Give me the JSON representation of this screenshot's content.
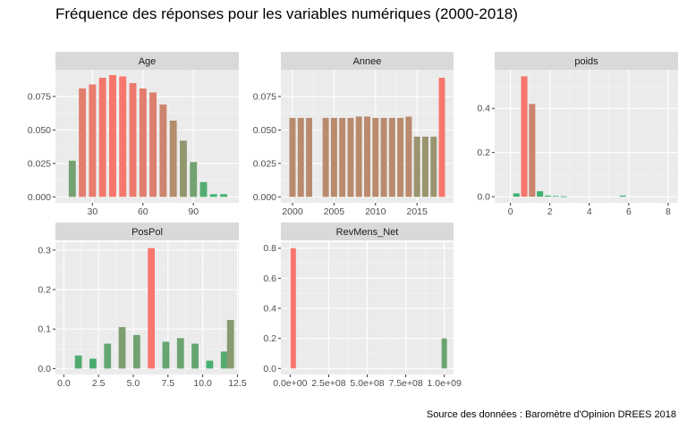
{
  "title": "Fréquence des réponses pour les variables numériques (2000-2018)",
  "caption": "Source des données : Baromètre d'Opinion DREES 2018",
  "colors": {
    "panel_bg": "#ebebeb",
    "strip_bg": "#d9d9d9",
    "grid_major": "#ffffff",
    "low": "#3cb371",
    "high": "#f8766d"
  },
  "chart_data": [
    {
      "type": "bar",
      "title": "Age",
      "xlim": [
        8,
        117
      ],
      "ylim": [
        -0.0045,
        0.095
      ],
      "xticks": [
        30,
        60,
        90
      ],
      "xtick_labels": [
        "30",
        "60",
        "90"
      ],
      "yticks": [
        0,
        0.025,
        0.05,
        0.075
      ],
      "ytick_labels": [
        "0.000",
        "0.025",
        "0.050",
        "0.075"
      ],
      "bar_width": 4.2,
      "x": [
        18,
        24,
        30,
        36,
        42,
        48,
        54,
        60,
        66,
        72,
        78,
        84,
        90,
        96,
        102,
        108
      ],
      "values": [
        0.027,
        0.081,
        0.084,
        0.089,
        0.091,
        0.09,
        0.085,
        0.081,
        0.078,
        0.069,
        0.057,
        0.042,
        0.026,
        0.011,
        0.002,
        0.002
      ]
    },
    {
      "type": "bar",
      "title": "Annee",
      "xlim": [
        1998.6,
        2019.4
      ],
      "ylim": [
        -0.0045,
        0.095
      ],
      "xticks": [
        2000,
        2005,
        2010,
        2015
      ],
      "xtick_labels": [
        "2000",
        "2005",
        "2010",
        "2015"
      ],
      "yticks": [
        0,
        0.025,
        0.05,
        0.075
      ],
      "ytick_labels": [
        "0.000",
        "0.025",
        "0.050",
        "0.075"
      ],
      "bar_width": 0.75,
      "x": [
        2000,
        2001,
        2002,
        2004,
        2005,
        2006,
        2007,
        2008,
        2009,
        2010,
        2011,
        2012,
        2013,
        2014,
        2015,
        2016,
        2017,
        2018
      ],
      "values": [
        0.059,
        0.059,
        0.059,
        0.059,
        0.059,
        0.059,
        0.059,
        0.06,
        0.06,
        0.059,
        0.059,
        0.059,
        0.059,
        0.06,
        0.045,
        0.045,
        0.045,
        0.089
      ]
    },
    {
      "type": "bar",
      "title": "poids",
      "xlim": [
        -0.8,
        8.5
      ],
      "ylim": [
        -0.028,
        0.575
      ],
      "xticks": [
        0,
        2,
        4,
        6,
        8
      ],
      "xtick_labels": [
        "0",
        "2",
        "4",
        "6",
        "8"
      ],
      "yticks": [
        0,
        0.2,
        0.4
      ],
      "ytick_labels": [
        "0.0",
        "0.2",
        "0.4"
      ],
      "bar_width": 0.32,
      "x": [
        0.3,
        0.7,
        1.1,
        1.5,
        1.9,
        2.3,
        2.7,
        5.7
      ],
      "values": [
        0.015,
        0.545,
        0.42,
        0.025,
        0.005,
        0.003,
        0.002,
        0.005
      ]
    },
    {
      "type": "bar",
      "title": "PosPol",
      "xlim": [
        -0.6,
        12.6
      ],
      "ylim": [
        -0.015,
        0.32
      ],
      "xticks": [
        0,
        2.5,
        5,
        7.5,
        10,
        12.5
      ],
      "xtick_labels": [
        "0.0",
        "2.5",
        "5.0",
        "7.5",
        "10.0",
        "12.5"
      ],
      "yticks": [
        0,
        0.1,
        0.2,
        0.3
      ],
      "ytick_labels": [
        "0.0",
        "0.1",
        "0.2",
        "0.3"
      ],
      "bar_width": 0.5,
      "x": [
        1.05,
        2.1,
        3.15,
        4.2,
        5.25,
        6.3,
        7.35,
        8.4,
        9.45,
        10.5,
        11.55,
        12
      ],
      "values": [
        0.033,
        0.025,
        0.063,
        0.105,
        0.085,
        0.305,
        0.068,
        0.077,
        0.063,
        0.02,
        0.043,
        0.123
      ]
    },
    {
      "type": "bar",
      "title": "RevMens_Net",
      "xlim": [
        -60000000.0,
        1060000000.0
      ],
      "ylim": [
        -0.04,
        0.84
      ],
      "xticks": [
        0,
        250000000.0,
        500000000.0,
        750000000.0,
        1000000000.0
      ],
      "xtick_labels": [
        "0.0e+00",
        "2.5e+08",
        "5.0e+08",
        "7.5e+08",
        "1.0e+09"
      ],
      "yticks": [
        0,
        0.2,
        0.4,
        0.6,
        0.8
      ],
      "ytick_labels": [
        "0.0",
        "0.2",
        "0.4",
        "0.6",
        "0.8"
      ],
      "bar_width": 35000000.0,
      "x": [
        20000000.0,
        1000000000.0
      ],
      "values": [
        0.8,
        0.2
      ]
    }
  ]
}
